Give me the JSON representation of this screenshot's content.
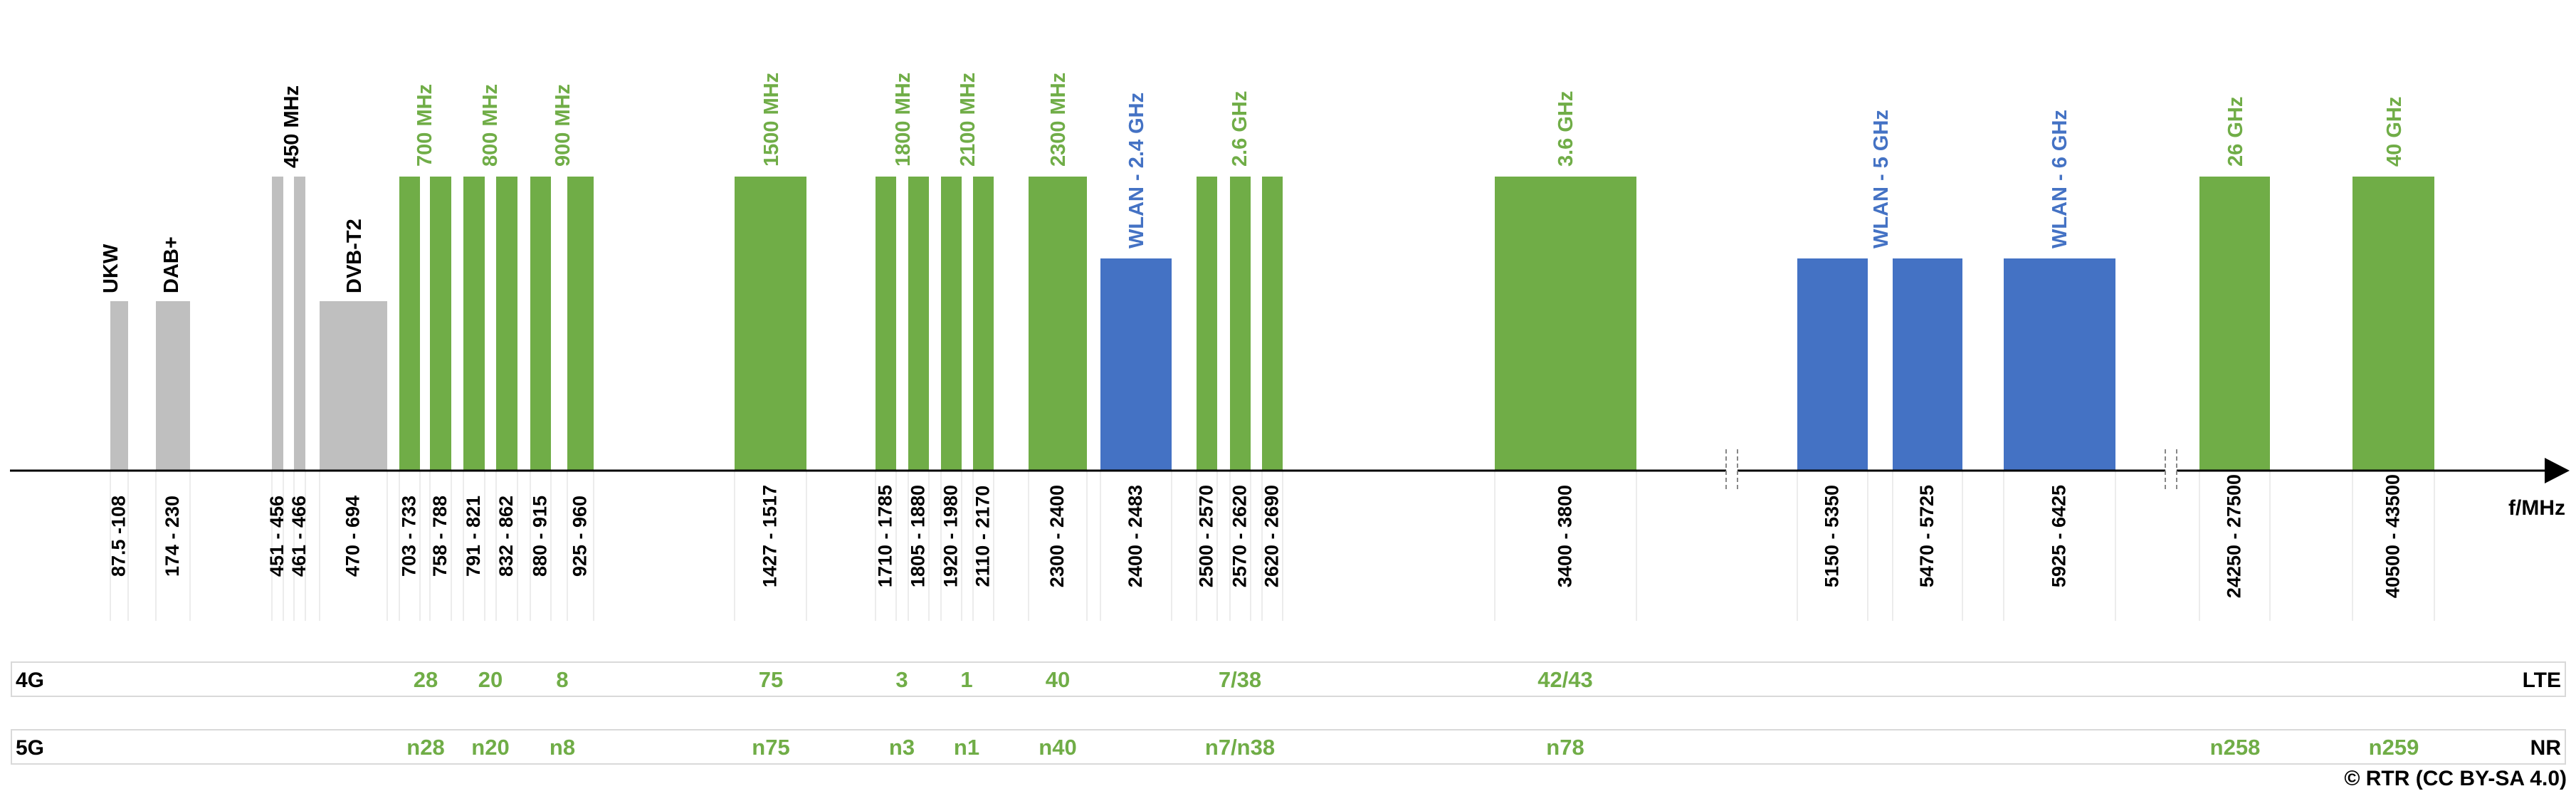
{
  "chart_data": {
    "type": "bar",
    "colors": {
      "broadcast": "#bfbfbf",
      "mobile": "#70ad47",
      "wlan": "#4472c4",
      "text_dark": "#000000",
      "grid": "#d9d9d9"
    },
    "axis_label": "f/MHz",
    "bands": [
      {
        "id": "ukw",
        "label": "UKW",
        "label_color": "dark",
        "segments": [
          {
            "range": "87.5 -108",
            "category": "broadcast",
            "level": "low"
          }
        ]
      },
      {
        "id": "dab",
        "label": "DAB+",
        "label_color": "dark",
        "segments": [
          {
            "range": "174 - 230",
            "category": "broadcast",
            "level": "low"
          }
        ]
      },
      {
        "id": "450",
        "label": "450 MHz",
        "label_color": "dark",
        "segments": [
          {
            "range": "451 - 456",
            "category": "broadcast",
            "level": "high"
          },
          {
            "range": "461 - 466",
            "category": "broadcast",
            "level": "high"
          }
        ]
      },
      {
        "id": "dvbt2",
        "label": "DVB-T2",
        "label_color": "dark",
        "segments": [
          {
            "range": "470 - 694",
            "category": "broadcast",
            "level": "low"
          }
        ]
      },
      {
        "id": "700",
        "label": "700 MHz",
        "label_color": "mobile",
        "segments": [
          {
            "range": "703 - 733",
            "category": "mobile",
            "level": "high"
          },
          {
            "range": "758 - 788",
            "category": "mobile",
            "level": "high"
          }
        ]
      },
      {
        "id": "800",
        "label": "800 MHz",
        "label_color": "mobile",
        "segments": [
          {
            "range": "791 - 821",
            "category": "mobile",
            "level": "high"
          },
          {
            "range": "832 - 862",
            "category": "mobile",
            "level": "high"
          }
        ]
      },
      {
        "id": "900",
        "label": "900 MHz",
        "label_color": "mobile",
        "segments": [
          {
            "range": "880 - 915",
            "category": "mobile",
            "level": "high"
          },
          {
            "range": "925 - 960",
            "category": "mobile",
            "level": "high"
          }
        ]
      },
      {
        "id": "1500",
        "label": "1500 MHz",
        "label_color": "mobile",
        "segments": [
          {
            "range": "1427 - 1517",
            "category": "mobile",
            "level": "high"
          }
        ]
      },
      {
        "id": "1800",
        "label": "1800 MHz",
        "label_color": "mobile",
        "segments": [
          {
            "range": "1710 - 1785",
            "category": "mobile",
            "level": "high"
          },
          {
            "range": "1805 - 1880",
            "category": "mobile",
            "level": "high"
          }
        ]
      },
      {
        "id": "2100",
        "label": "2100 MHz",
        "label_color": "mobile",
        "segments": [
          {
            "range": "1920 - 1980",
            "category": "mobile",
            "level": "high"
          },
          {
            "range": "2110 - 2170",
            "category": "mobile",
            "level": "high"
          }
        ]
      },
      {
        "id": "2300",
        "label": "2300 MHz",
        "label_color": "mobile",
        "segments": [
          {
            "range": "2300 - 2400",
            "category": "mobile",
            "level": "high"
          }
        ]
      },
      {
        "id": "wlan24",
        "label": "WLAN - 2.4 GHz",
        "label_color": "wlan",
        "segments": [
          {
            "range": "2400 - 2483",
            "category": "wlan",
            "level": "mid"
          }
        ]
      },
      {
        "id": "2600",
        "label": "2.6 GHz",
        "label_color": "mobile",
        "segments": [
          {
            "range": "2500 - 2570",
            "category": "mobile",
            "level": "high"
          },
          {
            "range": "2570 - 2620",
            "category": "mobile",
            "level": "high"
          },
          {
            "range": "2620 - 2690",
            "category": "mobile",
            "level": "high"
          }
        ]
      },
      {
        "id": "3600",
        "label": "3.6 GHz",
        "label_color": "mobile",
        "segments": [
          {
            "range": "3400 - 3800",
            "category": "mobile",
            "level": "high"
          }
        ]
      },
      {
        "id": "wlan5",
        "label": "WLAN - 5 GHz",
        "label_color": "wlan",
        "segments": [
          {
            "range": "5150 - 5350",
            "category": "wlan",
            "level": "mid"
          },
          {
            "range": "5470 - 5725",
            "category": "wlan",
            "level": "mid"
          }
        ]
      },
      {
        "id": "wlan6",
        "label": "WLAN - 6 GHz",
        "label_color": "wlan",
        "segments": [
          {
            "range": "5925 - 6425",
            "category": "wlan",
            "level": "mid"
          }
        ]
      },
      {
        "id": "26g",
        "label": "26 GHz",
        "label_color": "mobile",
        "segments": [
          {
            "range": "24250 - 27500",
            "category": "mobile",
            "level": "high"
          }
        ]
      },
      {
        "id": "40g",
        "label": "40 GHz",
        "label_color": "mobile",
        "segments": [
          {
            "range": "40500 - 43500",
            "category": "mobile",
            "level": "high"
          }
        ]
      }
    ],
    "rows": [
      {
        "id": "4g",
        "left": "4G",
        "right": "LTE",
        "items": [
          {
            "band": "700",
            "text": "28"
          },
          {
            "band": "800",
            "text": "20"
          },
          {
            "band": "900",
            "text": "8"
          },
          {
            "band": "1500",
            "text": "75"
          },
          {
            "band": "1800",
            "text": "3"
          },
          {
            "band": "2100",
            "text": "1"
          },
          {
            "band": "2300",
            "text": "40"
          },
          {
            "band": "2600",
            "text": "7/38"
          },
          {
            "band": "3600",
            "text": "42/43"
          }
        ]
      },
      {
        "id": "5g",
        "left": "5G",
        "right": "NR",
        "items": [
          {
            "band": "700",
            "text": "n28"
          },
          {
            "band": "800",
            "text": "n20"
          },
          {
            "band": "900",
            "text": "n8"
          },
          {
            "band": "1500",
            "text": "n75"
          },
          {
            "band": "1800",
            "text": "n3"
          },
          {
            "band": "2100",
            "text": "n1"
          },
          {
            "band": "2300",
            "text": "n40"
          },
          {
            "band": "2600",
            "text": "n7/n38"
          },
          {
            "band": "3600",
            "text": "n78"
          },
          {
            "band": "26g",
            "text": "n258"
          },
          {
            "band": "40g",
            "text": "n259"
          }
        ]
      }
    ],
    "copyright": "© RTR (CC BY-SA 4.0)"
  }
}
